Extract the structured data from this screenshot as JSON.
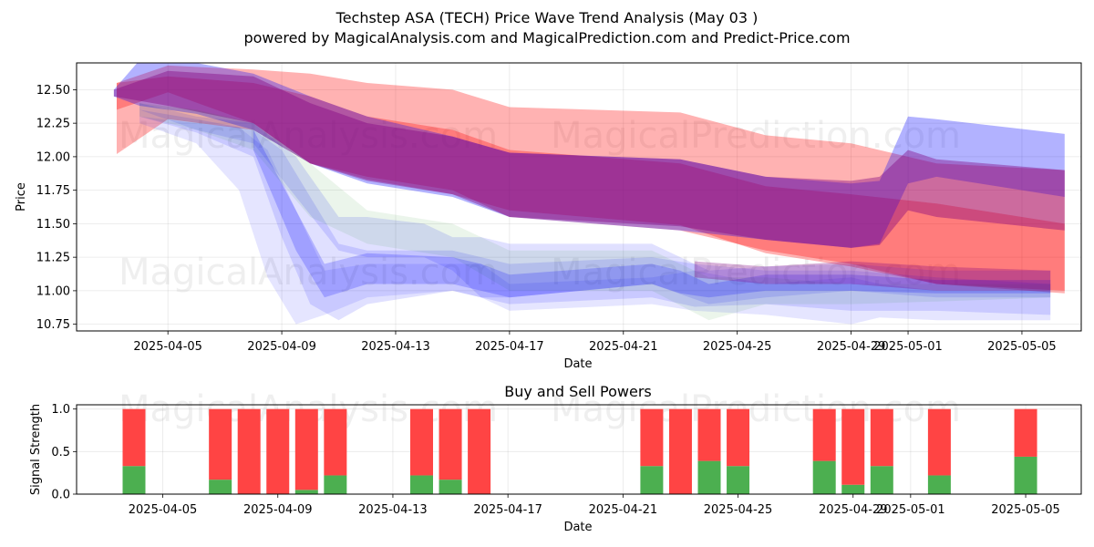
{
  "chart_data": [
    {
      "type": "area",
      "title_line1": "Techstep ASA (TECH) Price Wave Trend Analysis (May 03 )",
      "title_line2": "powered by MagicalAnalysis.com and MagicalPrediction.com and Predict-Price.com",
      "xlabel": "Date",
      "ylabel": "Price",
      "x_range": [
        "2025-04-01T19:00",
        "2025-05-07T02:00"
      ],
      "ylim": [
        10.7,
        12.7
      ],
      "x_ticks": [
        "2025-04-05",
        "2025-04-09",
        "2025-04-13",
        "2025-04-17",
        "2025-04-21",
        "2025-04-25",
        "2025-04-29",
        "2025-05-01",
        "2025-05-05"
      ],
      "y_ticks": [
        "10.75",
        "11.00",
        "11.25",
        "11.50",
        "11.75",
        "12.00",
        "12.25",
        "12.50"
      ],
      "watermarks": [
        "MagicalAnalysis.com",
        "MagicalPrediction.com",
        "MagicalAnalysis.com",
        "MagicalPrediction.com"
      ],
      "colors": {
        "red": "#ff0000",
        "blue": "#0000ff",
        "green": "#008000",
        "purple": "#800080"
      },
      "bands": [
        {
          "color": "red",
          "opacity": 0.3,
          "x": [
            2.2,
            4,
            7,
            9,
            11,
            14,
            16,
            22,
            25,
            28,
            31,
            35.5
          ],
          "hi": [
            12.55,
            12.68,
            12.65,
            12.62,
            12.55,
            12.5,
            12.37,
            12.33,
            12.16,
            12.1,
            11.95,
            11.9
          ],
          "lo": [
            12.02,
            12.28,
            12.2,
            11.95,
            11.83,
            11.72,
            11.6,
            11.49,
            11.28,
            11.18,
            11.05,
            10.98
          ]
        },
        {
          "color": "red",
          "opacity": 0.3,
          "x": [
            2.2,
            4,
            7,
            9,
            11,
            14,
            16,
            22,
            25,
            28,
            31,
            35.5
          ],
          "hi": [
            12.55,
            12.6,
            12.55,
            12.45,
            12.3,
            12.2,
            12.05,
            11.95,
            11.78,
            11.72,
            11.65,
            11.5
          ],
          "lo": [
            12.35,
            12.48,
            12.25,
            11.95,
            11.85,
            11.75,
            11.55,
            11.45,
            11.3,
            11.2,
            11.05,
            11.0
          ]
        },
        {
          "color": "blue",
          "opacity": 0.3,
          "x": [
            2.1,
            3,
            5,
            7,
            9,
            11,
            14,
            16,
            22,
            25,
            28,
            29,
            30,
            31,
            35.5
          ],
          "hi": [
            12.5,
            12.72,
            12.7,
            12.62,
            12.45,
            12.3,
            12.15,
            12.03,
            11.98,
            11.85,
            11.8,
            11.82,
            12.3,
            12.28,
            12.17
          ],
          "lo": [
            12.45,
            12.38,
            12.32,
            12.2,
            11.95,
            11.8,
            11.7,
            11.55,
            11.45,
            11.38,
            11.32,
            11.35,
            11.8,
            11.85,
            11.7
          ]
        },
        {
          "color": "purple",
          "opacity": 0.4,
          "x": [
            2.1,
            4,
            7,
            9,
            11,
            14,
            16,
            22,
            25,
            28,
            29,
            30,
            31,
            35.5
          ],
          "hi": [
            12.5,
            12.64,
            12.6,
            12.4,
            12.25,
            12.15,
            12.03,
            11.98,
            11.85,
            11.82,
            11.85,
            12.05,
            11.98,
            11.9
          ],
          "lo": [
            12.45,
            12.38,
            12.25,
            11.95,
            11.82,
            11.72,
            11.55,
            11.48,
            11.38,
            11.32,
            11.34,
            11.6,
            11.55,
            11.45
          ]
        },
        {
          "color": "blue",
          "opacity": 0.1,
          "x": [
            3,
            5,
            6.5,
            7.5,
            8.5,
            9.5,
            11,
            14,
            15,
            16,
            21,
            22.5,
            25,
            28,
            29,
            31,
            35
          ],
          "hi": [
            12.3,
            12.25,
            12.22,
            12.05,
            11.6,
            11.15,
            11.2,
            11.2,
            11.2,
            11.05,
            11.1,
            11.15,
            11.05,
            11.1,
            11.05,
            11.0,
            11.0
          ],
          "lo": [
            12.25,
            12.1,
            11.75,
            11.1,
            10.75,
            10.82,
            10.95,
            11.0,
            10.95,
            10.85,
            10.9,
            10.85,
            10.82,
            10.75,
            10.8,
            10.78,
            10.78
          ]
        },
        {
          "color": "blue",
          "opacity": 0.12,
          "x": [
            3,
            5,
            7,
            8,
            9,
            10,
            11,
            14,
            15,
            16,
            21,
            22.5,
            25,
            28,
            31,
            35
          ],
          "hi": [
            12.35,
            12.28,
            12.2,
            12.05,
            11.7,
            11.35,
            11.3,
            11.3,
            11.25,
            11.2,
            11.25,
            11.2,
            11.15,
            11.15,
            11.1,
            11.05
          ],
          "lo": [
            12.3,
            12.18,
            12.0,
            11.4,
            10.9,
            10.78,
            10.9,
            11.0,
            10.95,
            10.9,
            10.95,
            10.88,
            10.9,
            10.85,
            10.85,
            10.82
          ]
        },
        {
          "color": "blue",
          "opacity": 0.12,
          "x": [
            3,
            5,
            7,
            8.5,
            10,
            11,
            13,
            14,
            15,
            16,
            21,
            23,
            25,
            28,
            31,
            35
          ],
          "hi": [
            12.4,
            12.3,
            12.25,
            12.0,
            11.55,
            11.55,
            11.5,
            11.4,
            11.4,
            11.35,
            11.35,
            11.15,
            11.18,
            11.2,
            11.15,
            11.15
          ],
          "lo": [
            12.35,
            12.2,
            12.1,
            11.7,
            11.3,
            11.25,
            11.25,
            11.15,
            10.95,
            10.95,
            11.05,
            10.9,
            10.95,
            11.0,
            10.95,
            10.95
          ]
        },
        {
          "color": "green",
          "opacity": 0.08,
          "x": [
            3,
            5,
            7,
            9,
            11,
            14,
            16,
            21,
            23,
            25,
            28,
            31,
            35
          ],
          "hi": [
            12.4,
            12.35,
            12.25,
            11.95,
            11.6,
            11.5,
            11.3,
            11.3,
            11.1,
            11.1,
            11.05,
            11.05,
            11.05
          ],
          "lo": [
            12.3,
            12.2,
            12.05,
            11.55,
            11.35,
            11.25,
            11.0,
            11.0,
            10.78,
            10.9,
            10.9,
            10.92,
            10.95
          ]
        },
        {
          "color": "blue",
          "opacity": 0.2,
          "x": [
            7,
            8.5,
            9.5,
            11,
            14,
            15,
            16,
            21,
            22,
            23,
            25,
            28,
            31,
            35
          ],
          "hi": [
            12.2,
            11.6,
            11.2,
            11.28,
            11.25,
            11.2,
            11.12,
            11.2,
            11.15,
            11.05,
            11.12,
            11.12,
            11.08,
            11.08
          ],
          "lo": [
            12.05,
            11.3,
            10.95,
            11.05,
            11.05,
            11.0,
            10.95,
            11.05,
            10.98,
            10.95,
            11.0,
            11.0,
            10.98,
            10.98
          ]
        },
        {
          "color": "purple",
          "opacity": 0.3,
          "x": [
            22.5,
            25,
            28,
            31,
            35
          ],
          "hi": [
            11.22,
            11.18,
            11.22,
            11.18,
            11.15
          ],
          "lo": [
            11.1,
            11.05,
            11.05,
            11.0,
            11.0
          ]
        }
      ]
    },
    {
      "type": "bar",
      "title": "Buy and Sell Powers",
      "xlabel": "Date",
      "ylabel": "Signal Strength",
      "ylim": [
        0,
        1.05
      ],
      "y_ticks": [
        "0.0",
        "0.5",
        "1.0"
      ],
      "x_ticks": [
        "2025-04-05",
        "2025-04-09",
        "2025-04-13",
        "2025-04-17",
        "2025-04-21",
        "2025-04-25",
        "2025-04-29",
        "2025-05-01",
        "2025-05-05"
      ],
      "watermarks": [
        "MagicalAnalysis.com",
        "MagicalPrediction.com"
      ],
      "colors": {
        "buy": "#4caf50",
        "sell": "#ff4444"
      },
      "dates": [
        "04-04",
        "04-07",
        "04-08",
        "04-09",
        "04-10",
        "04-11",
        "04-14",
        "04-15",
        "04-16",
        "04-22",
        "04-23",
        "04-24",
        "04-25",
        "04-28",
        "04-29",
        "04-30",
        "05-02",
        "05-05"
      ],
      "day_index": [
        3,
        6,
        7,
        8,
        9,
        10,
        13,
        14,
        15,
        21,
        22,
        23,
        24,
        27,
        28,
        29,
        31,
        34
      ],
      "buy": [
        0.33,
        0.17,
        0.0,
        0.0,
        0.05,
        0.22,
        0.22,
        0.17,
        0.0,
        0.33,
        0.0,
        0.39,
        0.33,
        0.39,
        0.11,
        0.33,
        0.22,
        0.44
      ],
      "sell": [
        0.67,
        0.83,
        1.0,
        1.0,
        0.95,
        0.78,
        0.78,
        0.83,
        1.0,
        0.67,
        1.0,
        0.61,
        0.67,
        0.61,
        0.89,
        0.67,
        0.78,
        0.56
      ]
    }
  ]
}
